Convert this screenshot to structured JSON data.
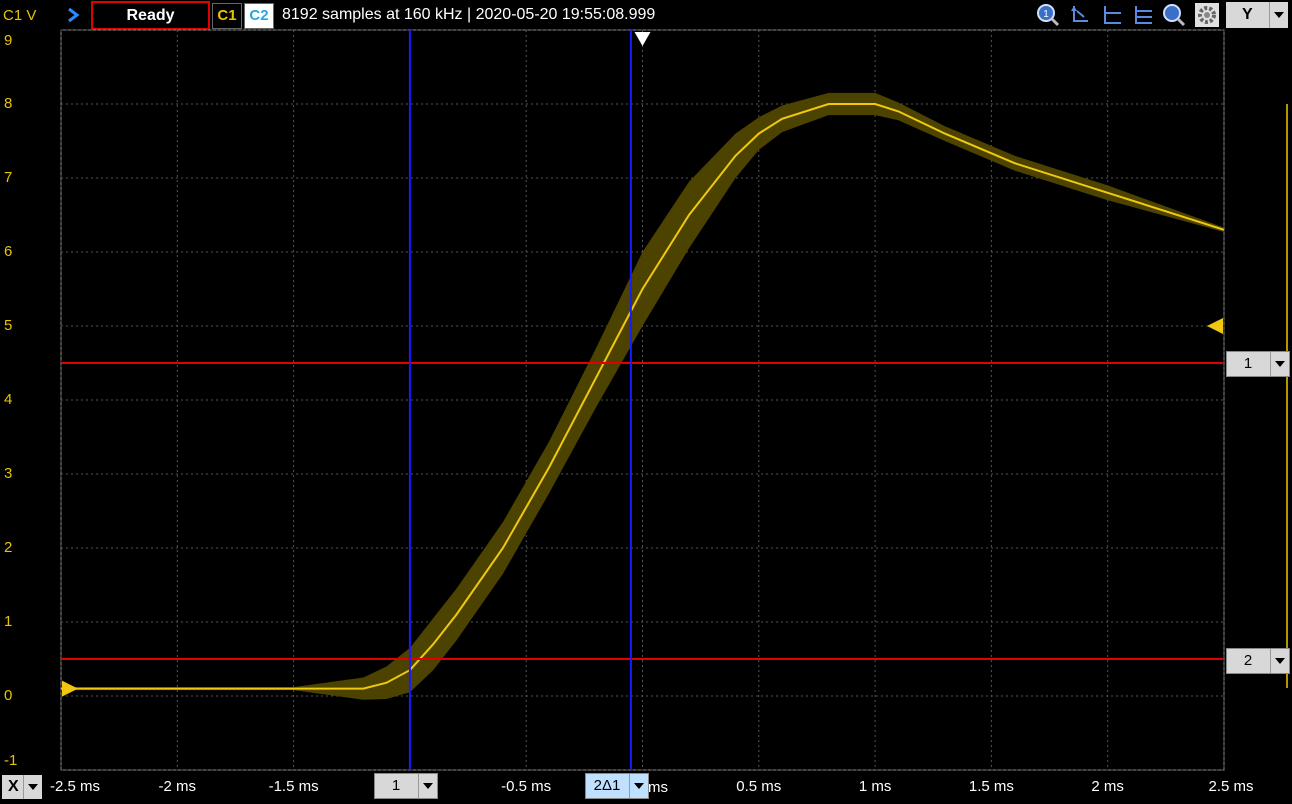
{
  "header": {
    "channel_unit": "C1 V",
    "status": "Ready",
    "ch1_label": "C1",
    "ch2_label": "C2",
    "acquisition_info": "8192 samples at 160 kHz | 2020-05-20 19:55:08.999",
    "y_axis_selector": "Y"
  },
  "toolbar": {
    "icons": [
      "zoom-reset-icon",
      "cursor-icon",
      "horizontal-cursor-icon",
      "horizontal-cursors-icon",
      "zoom-icon",
      "settings-icon"
    ]
  },
  "y_axis": {
    "tick_labels": [
      "9",
      "8",
      "7",
      "6",
      "5",
      "4",
      "3",
      "2",
      "1",
      "0",
      "-1"
    ]
  },
  "x_axis": {
    "selector": "X",
    "tick_labels": [
      "-2.5 ms",
      "-2 ms",
      "-1.5 ms",
      "-0.5 ms",
      "0.5 ms",
      "1 ms",
      "1.5 ms",
      "2 ms",
      "2.5 ms"
    ],
    "partially_hidden_label": "ms"
  },
  "cursors": {
    "horizontal": [
      {
        "label": "1",
        "value": 4.5
      },
      {
        "label": "2",
        "value": 0.5
      }
    ],
    "vertical": [
      {
        "label": "1",
        "value_ms": -1.0
      },
      {
        "label": "2Δ1",
        "value_ms": -0.05
      }
    ]
  },
  "colors": {
    "trace": "#f0c810",
    "envelope": "#4d4300",
    "grid": "#555555",
    "cursor_h": "#e00000",
    "cursor_v": "#1a1aff",
    "axis_label": "#e8c400"
  },
  "chart_data": {
    "type": "line",
    "xlabel": "",
    "ylabel": "",
    "xlim": [
      -2.5,
      2.5
    ],
    "ylim": [
      -1,
      9
    ],
    "x": [
      -2.5,
      -2.0,
      -1.5,
      -1.2,
      -1.1,
      -1.0,
      -0.9,
      -0.8,
      -0.6,
      -0.4,
      -0.2,
      0.0,
      0.2,
      0.4,
      0.5,
      0.6,
      0.8,
      1.0,
      1.1,
      1.3,
      1.6,
      2.0,
      2.5
    ],
    "series": [
      {
        "values": [
          0.1,
          0.1,
          0.1,
          0.1,
          0.18,
          0.35,
          0.7,
          1.1,
          2.0,
          3.1,
          4.3,
          5.5,
          6.5,
          7.3,
          7.6,
          7.8,
          8.0,
          8.0,
          7.9,
          7.6,
          7.2,
          6.8,
          6.3
        ]
      }
    ],
    "envelope_half_width": [
      0.02,
      0.02,
      0.02,
      0.15,
      0.22,
      0.3,
      0.35,
      0.35,
      0.35,
      0.35,
      0.4,
      0.5,
      0.45,
      0.3,
      0.22,
      0.18,
      0.15,
      0.15,
      0.12,
      0.1,
      0.1,
      0.1,
      0.03
    ]
  }
}
